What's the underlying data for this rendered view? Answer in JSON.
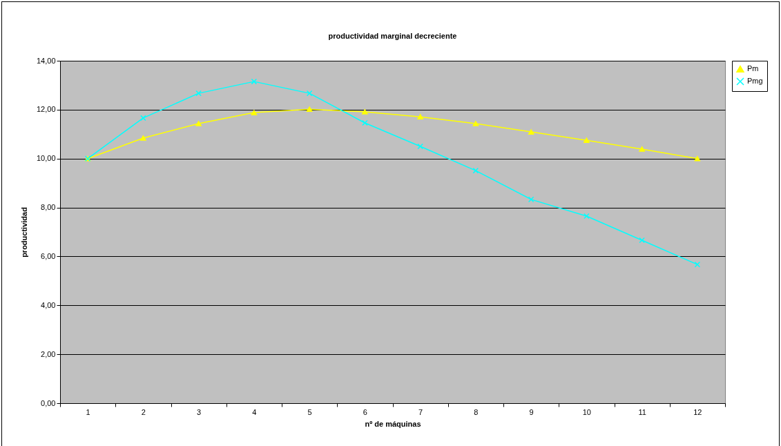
{
  "chart_data": {
    "type": "line",
    "title": "productividad marginal decreciente",
    "xlabel": "nº de máquinas",
    "ylabel": "productividad",
    "categories": [
      "1",
      "2",
      "3",
      "4",
      "5",
      "6",
      "7",
      "8",
      "9",
      "10",
      "11",
      "12"
    ],
    "series": [
      {
        "name": "Pm",
        "color": "#ffff00",
        "marker": "triangle",
        "values": [
          10.0,
          10.84,
          11.43,
          11.88,
          12.02,
          11.91,
          11.71,
          11.43,
          11.09,
          10.75,
          10.39,
          10.0
        ]
      },
      {
        "name": "Pmg",
        "color": "#00ffff",
        "marker": "cross",
        "values": [
          10.0,
          11.66,
          12.67,
          13.15,
          12.67,
          11.46,
          10.5,
          9.51,
          8.33,
          7.65,
          6.66,
          5.67
        ]
      }
    ],
    "ylim": [
      0,
      14
    ],
    "yticks": [
      {
        "value": 0,
        "label": "0,00"
      },
      {
        "value": 2,
        "label": "2,00"
      },
      {
        "value": 4,
        "label": "4,00"
      },
      {
        "value": 6,
        "label": "6,00"
      },
      {
        "value": 8,
        "label": "8,00"
      },
      {
        "value": 10,
        "label": "10,00"
      },
      {
        "value": 12,
        "label": "12,00"
      },
      {
        "value": 14,
        "label": "14,00"
      }
    ],
    "grid": "y",
    "legend": "right",
    "line_style": "solid"
  }
}
